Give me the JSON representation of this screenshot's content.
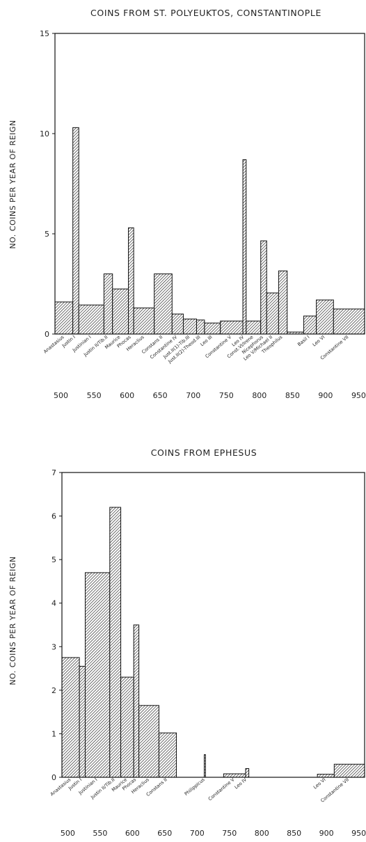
{
  "chart_data": [
    {
      "type": "bar",
      "title": "COINS FROM ST. POLYEUKTOS, CONSTANTINOPLE",
      "ylabel": "NO. COINS PER YEAR OF REIGN",
      "xlabel": "",
      "xlim": [
        491,
        959
      ],
      "ylim": [
        0,
        15
      ],
      "y_ticks": [
        0,
        5,
        10,
        15
      ],
      "x_ticks": [
        500,
        550,
        600,
        650,
        700,
        750,
        800,
        850,
        900,
        950
      ],
      "grid": false,
      "bars": [
        {
          "start": 491,
          "end": 518,
          "value": 1.6
        },
        {
          "start": 518,
          "end": 527,
          "value": 10.3
        },
        {
          "start": 527,
          "end": 565,
          "value": 1.45
        },
        {
          "start": 565,
          "end": 578,
          "value": 3.0
        },
        {
          "start": 578,
          "end": 602,
          "value": 2.25
        },
        {
          "start": 602,
          "end": 610,
          "value": 5.3
        },
        {
          "start": 610,
          "end": 641,
          "value": 1.3
        },
        {
          "start": 641,
          "end": 668,
          "value": 3.0
        },
        {
          "start": 668,
          "end": 685,
          "value": 1.0
        },
        {
          "start": 685,
          "end": 705,
          "value": 0.75
        },
        {
          "start": 705,
          "end": 717,
          "value": 0.7
        },
        {
          "start": 717,
          "end": 741,
          "value": 0.55
        },
        {
          "start": 741,
          "end": 775,
          "value": 0.65
        },
        {
          "start": 775,
          "end": 780,
          "value": 8.7
        },
        {
          "start": 780,
          "end": 802,
          "value": 0.65
        },
        {
          "start": 802,
          "end": 811,
          "value": 4.65
        },
        {
          "start": 811,
          "end": 829,
          "value": 2.05
        },
        {
          "start": 829,
          "end": 842,
          "value": 3.15
        },
        {
          "start": 842,
          "end": 867,
          "value": 0.1
        },
        {
          "start": 867,
          "end": 886,
          "value": 0.9
        },
        {
          "start": 886,
          "end": 912,
          "value": 1.7
        },
        {
          "start": 912,
          "end": 959,
          "value": 1.25
        }
      ],
      "category_labels": [
        {
          "label": "Anastasius",
          "x": 505
        },
        {
          "label": "Justin I",
          "x": 522
        },
        {
          "label": "Justinian I",
          "x": 546
        },
        {
          "label": "Justin II/Tib.II",
          "x": 571
        },
        {
          "label": "Maurice",
          "x": 590
        },
        {
          "label": "Phocas",
          "x": 606
        },
        {
          "label": "Heraclius",
          "x": 626
        },
        {
          "label": "Constans II",
          "x": 654
        },
        {
          "label": "Constantine IV",
          "x": 676
        },
        {
          "label": "Just.II(1)-Tib.III",
          "x": 695
        },
        {
          "label": "Just.II(2)-Theod.III",
          "x": 711
        },
        {
          "label": "Leo III",
          "x": 729
        },
        {
          "label": "Constantine V",
          "x": 758
        },
        {
          "label": "Leo IV",
          "x": 777
        },
        {
          "label": "Const.VI/Irene",
          "x": 791
        },
        {
          "label": "Nicephorus",
          "x": 806
        },
        {
          "label": "Leo V/Michael II",
          "x": 820
        },
        {
          "label": "Theophilus",
          "x": 835
        },
        {
          "label": "Basil I",
          "x": 876
        },
        {
          "label": "Leo VI",
          "x": 899
        },
        {
          "label": "Constantine VII",
          "x": 935
        }
      ]
    },
    {
      "type": "bar",
      "title": "COINS FROM EPHESUS",
      "ylabel": "NO. COINS PER YEAR OF REIGN",
      "xlabel": "",
      "xlim": [
        491,
        959
      ],
      "ylim": [
        0,
        7
      ],
      "y_ticks": [
        0,
        1,
        2,
        3,
        4,
        5,
        6,
        7
      ],
      "x_ticks": [
        500,
        550,
        600,
        650,
        700,
        750,
        800,
        850,
        900,
        950
      ],
      "grid": false,
      "bars": [
        {
          "start": 491,
          "end": 518,
          "value": 2.75
        },
        {
          "start": 518,
          "end": 527,
          "value": 2.55
        },
        {
          "start": 527,
          "end": 565,
          "value": 4.7
        },
        {
          "start": 565,
          "end": 582,
          "value": 6.2
        },
        {
          "start": 582,
          "end": 602,
          "value": 2.3
        },
        {
          "start": 602,
          "end": 610,
          "value": 3.5
        },
        {
          "start": 610,
          "end": 641,
          "value": 1.65
        },
        {
          "start": 641,
          "end": 668,
          "value": 1.02
        },
        {
          "start": 711,
          "end": 713,
          "value": 0.52
        },
        {
          "start": 741,
          "end": 775,
          "value": 0.08
        },
        {
          "start": 775,
          "end": 780,
          "value": 0.2
        },
        {
          "start": 886,
          "end": 912,
          "value": 0.07
        },
        {
          "start": 912,
          "end": 959,
          "value": 0.3
        }
      ],
      "category_labels": [
        {
          "label": "Anastasius",
          "x": 505
        },
        {
          "label": "Justin I",
          "x": 522
        },
        {
          "label": "Justinian I",
          "x": 546
        },
        {
          "label": "Justin II/Tib.II",
          "x": 573
        },
        {
          "label": "Maurice",
          "x": 592
        },
        {
          "label": "Phocas",
          "x": 606
        },
        {
          "label": "Heraclius",
          "x": 626
        },
        {
          "label": "Constans II",
          "x": 654
        },
        {
          "label": "Philippicus",
          "x": 712
        },
        {
          "label": "Constantine V",
          "x": 758
        },
        {
          "label": "Leo IV",
          "x": 777
        },
        {
          "label": "Leo VI",
          "x": 899
        },
        {
          "label": "Constantine VII",
          "x": 935
        }
      ]
    }
  ]
}
